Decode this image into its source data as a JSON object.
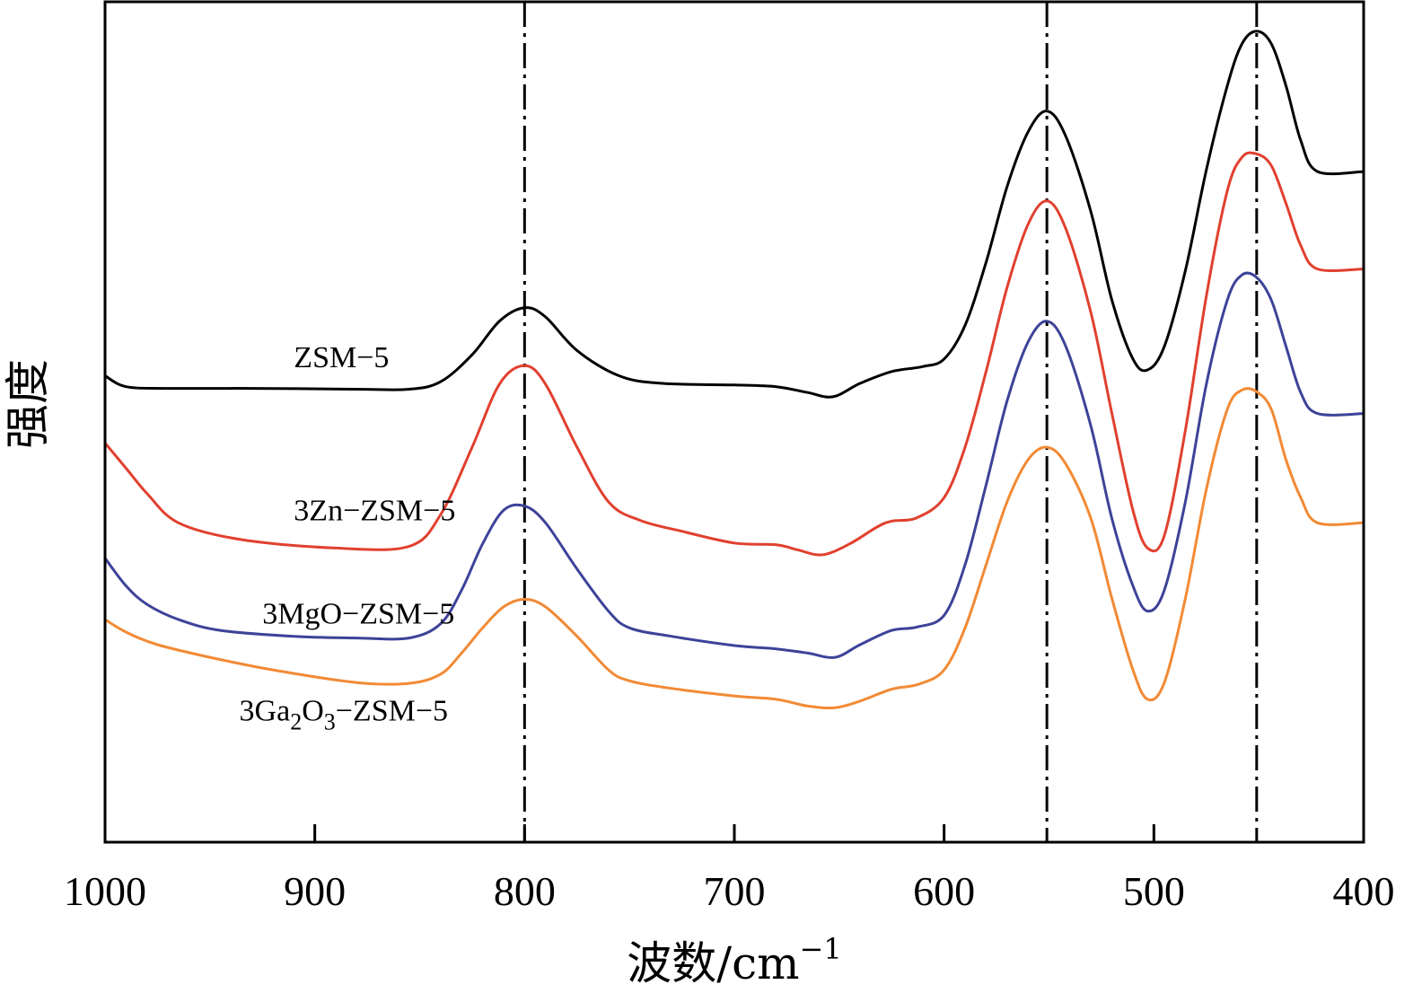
{
  "chart_data": {
    "type": "line",
    "title": "",
    "xlabel": "波数/cm",
    "xlabel_sup": "−1",
    "ylabel": "强度",
    "xlim": [
      1000,
      400
    ],
    "x_reversed": true,
    "xticks": [
      1000,
      900,
      800,
      700,
      600,
      500,
      400
    ],
    "xtick_labels": [
      "1000",
      "900",
      "800",
      "700",
      "600",
      "500",
      "400"
    ],
    "ylim": [
      0,
      100
    ],
    "yticks_shown": false,
    "grid": false,
    "legend": "none",
    "reference_lines_x": [
      800,
      551,
      451
    ],
    "series": [
      {
        "name": "ZSM−5",
        "label_parts": [
          {
            "t": "ZSM−5"
          }
        ],
        "label_at": [
          910,
          56.5
        ],
        "color": "#000000",
        "x": [
          1000,
          990,
          970,
          930,
          880,
          855,
          840,
          825,
          812,
          800,
          790,
          775,
          755,
          735,
          700,
          680,
          665,
          653,
          640,
          625,
          610,
          600,
          590,
          580,
          570,
          560,
          551,
          542,
          530,
          520,
          510,
          503,
          495,
          485,
          475,
          465,
          458,
          451,
          444,
          437,
          430,
          422,
          400
        ],
        "y": [
          55.5,
          54.2,
          54.0,
          54.0,
          53.9,
          53.9,
          54.8,
          58.0,
          62.0,
          63.6,
          62.5,
          58.5,
          55.5,
          54.6,
          54.4,
          54.2,
          53.5,
          53.0,
          54.6,
          56.0,
          56.6,
          57.5,
          61.5,
          69.0,
          78.0,
          84.5,
          87.0,
          84.0,
          75.0,
          64.5,
          57.5,
          56.2,
          59.0,
          68.0,
          80.0,
          90.0,
          95.0,
          96.5,
          95.0,
          90.0,
          83.5,
          79.8,
          79.8
        ]
      },
      {
        "name": "3Zn−ZSM−5",
        "label_parts": [
          {
            "t": "3Zn−ZSM−5"
          }
        ],
        "label_at": [
          910,
          38.3
        ],
        "color": "#e1402f",
        "x": [
          1000,
          990,
          980,
          965,
          935,
          890,
          855,
          840,
          825,
          812,
          800,
          790,
          775,
          760,
          745,
          725,
          700,
          680,
          670,
          658,
          645,
          632,
          625,
          613,
          600,
          590,
          580,
          570,
          560,
          551,
          542,
          530,
          520,
          510,
          503,
          495,
          485,
          475,
          465,
          458,
          451,
          444,
          437,
          430,
          422,
          400
        ],
        "y": [
          47.5,
          44.5,
          41.5,
          38.0,
          36.0,
          35.0,
          35.2,
          39.0,
          47.0,
          54.5,
          56.7,
          54.5,
          47.0,
          40.5,
          38.3,
          37.0,
          35.6,
          35.4,
          34.8,
          34.2,
          35.5,
          37.5,
          38.2,
          38.6,
          41.0,
          47.0,
          56.0,
          66.0,
          73.5,
          76.3,
          73.0,
          63.0,
          51.0,
          39.5,
          35.0,
          36.5,
          49.0,
          65.0,
          77.5,
          81.5,
          81.9,
          80.5,
          76.0,
          71.0,
          68.2,
          68.2
        ]
      },
      {
        "name": "3MgO−ZSM−5",
        "label_parts": [
          {
            "t": "3MgO−ZSM−5"
          }
        ],
        "label_at": [
          925,
          26.0
        ],
        "color": "#3d4398",
        "x": [
          1000,
          990,
          980,
          965,
          945,
          910,
          880,
          855,
          840,
          830,
          820,
          810,
          800,
          790,
          775,
          760,
          750,
          730,
          700,
          680,
          665,
          652,
          640,
          625,
          613,
          600,
          590,
          580,
          570,
          560,
          551,
          542,
          530,
          520,
          510,
          503,
          495,
          485,
          475,
          465,
          458,
          451,
          444,
          437,
          430,
          422,
          400
        ],
        "y": [
          33.8,
          30.5,
          28.3,
          26.5,
          25.2,
          24.5,
          24.3,
          24.3,
          26.0,
          30.0,
          35.5,
          39.5,
          40.0,
          38.0,
          32.5,
          27.5,
          25.5,
          24.5,
          23.4,
          23.0,
          22.5,
          22.0,
          23.5,
          25.2,
          25.6,
          27.0,
          33.0,
          42.5,
          52.5,
          59.5,
          62.0,
          59.0,
          49.5,
          38.5,
          30.5,
          27.5,
          30.0,
          40.5,
          54.5,
          64.5,
          67.5,
          67.2,
          64.5,
          59.0,
          53.5,
          51.0,
          51.0
        ]
      },
      {
        "name": "3Ga2O3−ZSM−5",
        "label_parts": [
          {
            "t": "3Ga"
          },
          {
            "t": "2",
            "sub": true
          },
          {
            "t": "O"
          },
          {
            "t": "3",
            "sub": true
          },
          {
            "t": "−ZSM−5"
          }
        ],
        "label_at": [
          936,
          14.5
        ],
        "color": "#f28a35",
        "x": [
          1000,
          990,
          975,
          950,
          920,
          880,
          855,
          840,
          830,
          820,
          810,
          800,
          790,
          775,
          760,
          750,
          730,
          700,
          680,
          665,
          652,
          640,
          625,
          612,
          600,
          590,
          580,
          570,
          560,
          551,
          542,
          530,
          520,
          510,
          503,
          495,
          485,
          475,
          465,
          458,
          451,
          444,
          437,
          430,
          422,
          400
        ],
        "y": [
          26.5,
          25.0,
          23.5,
          22.0,
          20.5,
          19.0,
          18.9,
          20.0,
          22.5,
          25.5,
          28.0,
          28.9,
          28.0,
          24.5,
          20.5,
          19.2,
          18.3,
          17.4,
          17.0,
          16.2,
          16.0,
          16.8,
          18.2,
          18.8,
          20.5,
          25.5,
          33.0,
          40.5,
          45.5,
          47.0,
          45.0,
          38.5,
          29.0,
          20.5,
          17.0,
          19.0,
          29.0,
          42.0,
          51.5,
          53.8,
          53.6,
          51.5,
          45.5,
          41.0,
          38.0,
          38.0
        ]
      }
    ]
  }
}
